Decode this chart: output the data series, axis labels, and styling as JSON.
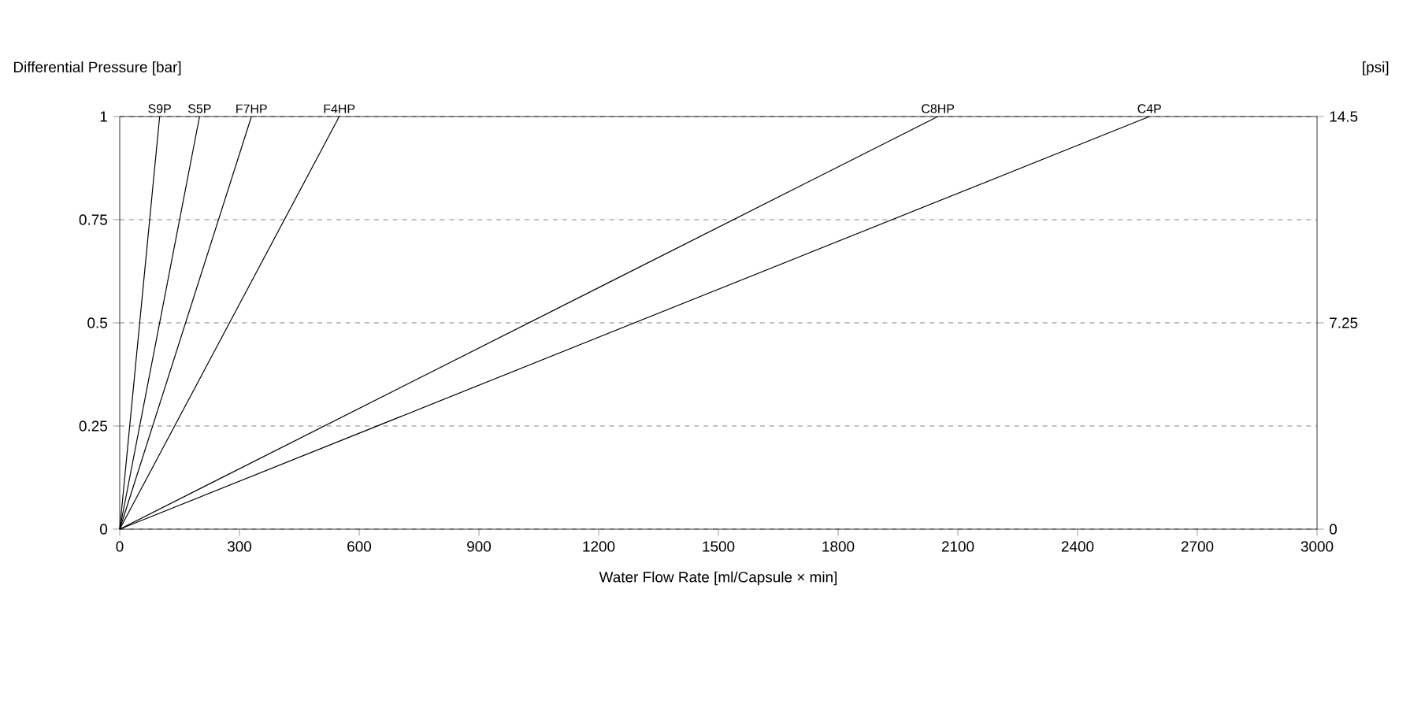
{
  "chart_data": {
    "type": "line",
    "xlabel": "Water Flow Rate [ml/Capsule × min]",
    "ylabel": "Differential Pressure [bar]",
    "y2label": "[psi]",
    "xlim": [
      0,
      3000
    ],
    "xticks": [
      0,
      300,
      600,
      900,
      1200,
      1500,
      1800,
      2100,
      2400,
      2700,
      3000
    ],
    "ylim": [
      0,
      1
    ],
    "yticks": [
      0,
      0.25,
      0.5,
      0.75,
      1
    ],
    "y2lim": [
      0,
      14.5
    ],
    "y2ticks": [
      0,
      7.25,
      14.5
    ],
    "grid": "y",
    "series": [
      {
        "name": "S9P",
        "color": "#000000",
        "x": [
          0,
          100
        ],
        "values": [
          0,
          1
        ]
      },
      {
        "name": "S5P",
        "color": "#000000",
        "x": [
          0,
          200
        ],
        "values": [
          0,
          1
        ]
      },
      {
        "name": "F7HP",
        "color": "#000000",
        "x": [
          0,
          330
        ],
        "values": [
          0,
          1
        ]
      },
      {
        "name": "F4HP",
        "color": "#000000",
        "x": [
          0,
          550
        ],
        "values": [
          0,
          1
        ]
      },
      {
        "name": "C8HP",
        "color": "#000000",
        "x": [
          0,
          2050
        ],
        "values": [
          0,
          1
        ]
      },
      {
        "name": "C4P",
        "color": "#000000",
        "x": [
          0,
          2580
        ],
        "values": [
          0,
          1
        ]
      }
    ]
  }
}
